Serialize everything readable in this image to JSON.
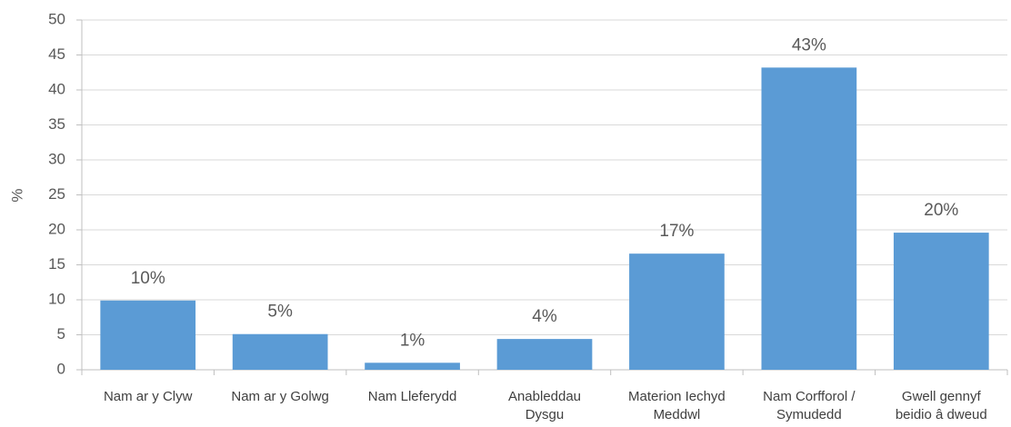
{
  "chart_data": {
    "type": "bar",
    "ylabel": "%",
    "categories": [
      "Nam ar y Clyw",
      "Nam ar y Golwg",
      "Nam Lleferydd",
      "Anableddau\nDysgu",
      "Materion Iechyd\nMeddwl",
      "Nam Corfforol /\nSymudedd",
      "Gwell gennyf\nbeidio â dweud"
    ],
    "values": [
      9.9,
      5.1,
      1,
      4.4,
      16.6,
      43.2,
      19.6
    ],
    "value_labels": [
      "10%",
      "5%",
      "1%",
      "4%",
      "17%",
      "43%",
      "20%"
    ],
    "color": "#5b9bd5",
    "ylim": [
      0,
      50
    ],
    "yticks": [
      0,
      5,
      10,
      15,
      20,
      25,
      30,
      35,
      40,
      45,
      50
    ],
    "grid": true
  }
}
